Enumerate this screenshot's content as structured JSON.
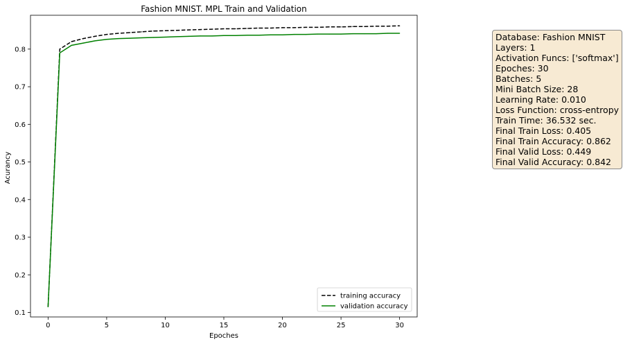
{
  "chart_data": {
    "type": "line",
    "title": "Fashion MNIST. MPL Train and Validation",
    "xlabel": "Epoches",
    "ylabel": "Acurancy",
    "xlim": [
      -1.5,
      31.5
    ],
    "ylim": [
      0.088,
      0.89
    ],
    "xticks": [
      0,
      5,
      10,
      15,
      20,
      25,
      30
    ],
    "yticks": [
      0.1,
      0.2,
      0.3,
      0.4,
      0.5,
      0.6,
      0.7,
      0.8
    ],
    "x": [
      0,
      1,
      2,
      3,
      4,
      5,
      6,
      7,
      8,
      9,
      10,
      11,
      12,
      13,
      14,
      15,
      16,
      17,
      18,
      19,
      20,
      21,
      22,
      23,
      24,
      25,
      26,
      27,
      28,
      29,
      30
    ],
    "series": [
      {
        "name": "training accuracy",
        "color": "#000000",
        "style": "dashed",
        "values": [
          0.115,
          0.8,
          0.82,
          0.828,
          0.834,
          0.839,
          0.842,
          0.844,
          0.846,
          0.848,
          0.849,
          0.85,
          0.851,
          0.852,
          0.853,
          0.854,
          0.854,
          0.855,
          0.856,
          0.856,
          0.857,
          0.857,
          0.858,
          0.858,
          0.859,
          0.859,
          0.86,
          0.86,
          0.861,
          0.861,
          0.862
        ]
      },
      {
        "name": "validation accuracy",
        "color": "#008000",
        "style": "solid",
        "values": [
          0.115,
          0.79,
          0.81,
          0.816,
          0.822,
          0.826,
          0.828,
          0.829,
          0.83,
          0.831,
          0.832,
          0.833,
          0.834,
          0.835,
          0.835,
          0.836,
          0.836,
          0.837,
          0.837,
          0.838,
          0.838,
          0.839,
          0.839,
          0.84,
          0.84,
          0.84,
          0.841,
          0.841,
          0.841,
          0.842,
          0.842
        ]
      }
    ],
    "legend_position": "bottom-right",
    "grid": false
  },
  "info_box": {
    "lines": [
      "Database: Fashion MNIST",
      "Layers: 1",
      "Activation Funcs: ['softmax']",
      "Epoches: 30",
      "Batches: 5",
      "Mini Batch Size: 28",
      "Learning Rate: 0.010",
      "Loss Function: cross-entropy",
      "Train Time: 36.532 sec.",
      "Final Train Loss: 0.405",
      "Final Train Accuracy: 0.862",
      "Final Valid Loss: 0.449",
      "Final Valid Accuracy: 0.842"
    ]
  }
}
